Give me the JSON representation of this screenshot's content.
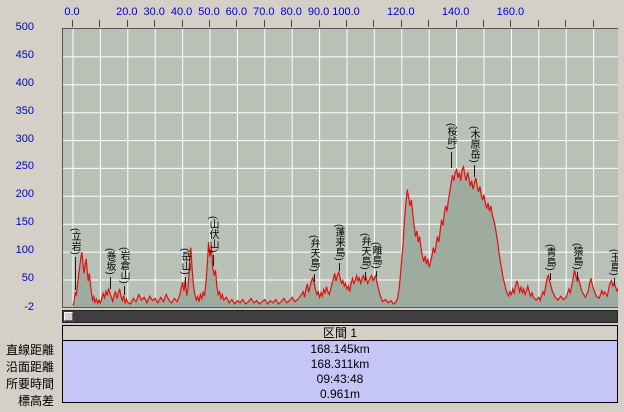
{
  "colors": {
    "window_bg": "#d4d0c8",
    "plot_bg": "#b9c1b6",
    "fill": "#9dac9e",
    "line": "#e01010",
    "grid": "#ffffff",
    "axis_text": "#0000c8",
    "scrollbar_bg": "#3f3f3f",
    "thumb_bg": "#d4d0c8",
    "panel_bg": "#c6c6f6",
    "header_bg": "#d4d0c8"
  },
  "x_axis": {
    "labels": [
      {
        "km": 0,
        "text": "0.0"
      },
      {
        "km": 20,
        "text": "20.0"
      },
      {
        "km": 30,
        "text": "30.0"
      },
      {
        "km": 40,
        "text": "40.0"
      },
      {
        "km": 50,
        "text": "50.0"
      },
      {
        "km": 60,
        "text": "60.0"
      },
      {
        "km": 70,
        "text": "70.0"
      },
      {
        "km": 80,
        "text": "80.0"
      },
      {
        "km": 90,
        "text": "90.0"
      },
      {
        "km": 100,
        "text": "100.0"
      },
      {
        "km": 120,
        "text": "120.0"
      },
      {
        "km": 140,
        "text": "140.0"
      },
      {
        "km": 160,
        "text": "160.0"
      }
    ],
    "tick_step_km": 10
  },
  "y_axis": {
    "labels": [
      {
        "v": 500,
        "text": "500"
      },
      {
        "v": 450,
        "text": "450"
      },
      {
        "v": 400,
        "text": "400"
      },
      {
        "v": 350,
        "text": "350"
      },
      {
        "v": 300,
        "text": "300"
      },
      {
        "v": 250,
        "text": "250"
      },
      {
        "v": 200,
        "text": "200"
      },
      {
        "v": 150,
        "text": "150"
      },
      {
        "v": 100,
        "text": "100"
      },
      {
        "v": 50,
        "text": "50"
      },
      {
        "v": -2,
        "text": "-2"
      }
    ]
  },
  "chart_data": {
    "type": "area",
    "title": "",
    "x_unit": "km",
    "y_unit": "m",
    "x_range": [
      0,
      199.3
    ],
    "y_range": [
      -2,
      500
    ],
    "grid": true,
    "profile": [
      [
        0,
        4
      ],
      [
        0.4,
        12
      ],
      [
        0.8,
        28
      ],
      [
        1.2,
        22
      ],
      [
        1.6,
        40
      ],
      [
        2,
        58
      ],
      [
        2.4,
        72
      ],
      [
        2.8,
        88
      ],
      [
        3.2,
        100
      ],
      [
        3.6,
        82
      ],
      [
        4,
        62
      ],
      [
        4.4,
        76
      ],
      [
        4.8,
        88
      ],
      [
        5.2,
        66
      ],
      [
        5.6,
        48
      ],
      [
        6,
        62
      ],
      [
        6.4,
        42
      ],
      [
        6.8,
        24
      ],
      [
        7.2,
        14
      ],
      [
        7.6,
        20
      ],
      [
        8,
        10
      ],
      [
        8.5,
        16
      ],
      [
        9,
        8
      ],
      [
        9.5,
        14
      ],
      [
        10,
        9
      ],
      [
        10.5,
        17
      ],
      [
        11,
        26
      ],
      [
        11.5,
        18
      ],
      [
        12,
        30
      ],
      [
        12.5,
        22
      ],
      [
        13,
        34
      ],
      [
        13.5,
        27
      ],
      [
        14,
        18
      ],
      [
        14.5,
        12
      ],
      [
        15,
        22
      ],
      [
        15.5,
        30
      ],
      [
        16,
        17
      ],
      [
        16.5,
        25
      ],
      [
        17,
        34
      ],
      [
        17.5,
        20
      ],
      [
        18,
        13
      ],
      [
        18.5,
        22
      ],
      [
        19,
        9
      ],
      [
        19.5,
        16
      ],
      [
        20,
        10
      ],
      [
        21,
        7
      ],
      [
        22,
        17
      ],
      [
        23,
        11
      ],
      [
        24,
        24
      ],
      [
        25,
        14
      ],
      [
        26,
        19
      ],
      [
        27,
        9
      ],
      [
        28,
        21
      ],
      [
        29,
        13
      ],
      [
        30,
        17
      ],
      [
        31,
        9
      ],
      [
        32,
        19
      ],
      [
        33,
        11
      ],
      [
        34,
        24
      ],
      [
        35,
        14
      ],
      [
        36,
        9
      ],
      [
        37,
        17
      ],
      [
        38,
        11
      ],
      [
        39,
        24
      ],
      [
        39.5,
        36
      ],
      [
        40,
        46
      ],
      [
        40.5,
        30
      ],
      [
        41,
        50
      ],
      [
        41.5,
        22
      ],
      [
        42,
        36
      ],
      [
        42.5,
        78
      ],
      [
        43,
        108
      ],
      [
        43.5,
        68
      ],
      [
        44,
        38
      ],
      [
        44.5,
        24
      ],
      [
        45,
        14
      ],
      [
        45.5,
        20
      ],
      [
        46,
        11
      ],
      [
        46.5,
        24
      ],
      [
        47,
        17
      ],
      [
        47.5,
        29
      ],
      [
        48,
        21
      ],
      [
        48.5,
        44
      ],
      [
        49,
        78
      ],
      [
        49.5,
        118
      ],
      [
        50,
        92
      ],
      [
        50.5,
        112
      ],
      [
        51,
        72
      ],
      [
        51.5,
        58
      ],
      [
        52,
        68
      ],
      [
        52.5,
        38
      ],
      [
        53,
        24
      ],
      [
        53.5,
        29
      ],
      [
        54,
        17
      ],
      [
        54.5,
        24
      ],
      [
        55,
        14
      ],
      [
        56,
        19
      ],
      [
        57,
        9
      ],
      [
        58,
        15
      ],
      [
        59,
        7
      ],
      [
        60,
        13
      ],
      [
        61,
        9
      ],
      [
        62,
        15
      ],
      [
        63,
        7
      ],
      [
        64,
        11
      ],
      [
        65,
        17
      ],
      [
        66,
        9
      ],
      [
        67,
        13
      ],
      [
        68,
        7
      ],
      [
        69,
        11
      ],
      [
        70,
        15
      ],
      [
        71,
        7
      ],
      [
        72,
        13
      ],
      [
        73,
        9
      ],
      [
        74,
        15
      ],
      [
        75,
        7
      ],
      [
        76,
        11
      ],
      [
        77,
        17
      ],
      [
        78,
        9
      ],
      [
        79,
        13
      ],
      [
        80,
        19
      ],
      [
        81,
        11
      ],
      [
        82,
        15
      ],
      [
        83,
        21
      ],
      [
        84,
        29
      ],
      [
        84.5,
        19
      ],
      [
        85,
        33
      ],
      [
        85.5,
        43
      ],
      [
        86,
        28
      ],
      [
        86.5,
        38
      ],
      [
        87,
        48
      ],
      [
        87.5,
        54
      ],
      [
        88,
        44
      ],
      [
        88.5,
        33
      ],
      [
        89,
        24
      ],
      [
        89.5,
        29
      ],
      [
        90,
        19
      ],
      [
        90.5,
        27
      ],
      [
        91,
        21
      ],
      [
        91.5,
        33
      ],
      [
        92,
        27
      ],
      [
        92.5,
        38
      ],
      [
        93,
        29
      ],
      [
        93.5,
        24
      ],
      [
        94,
        33
      ],
      [
        94.5,
        43
      ],
      [
        95,
        52
      ],
      [
        95.5,
        62
      ],
      [
        96,
        48
      ],
      [
        96.5,
        58
      ],
      [
        97,
        64
      ],
      [
        97.5,
        53
      ],
      [
        98,
        44
      ],
      [
        98.5,
        49
      ],
      [
        99,
        39
      ],
      [
        99.5,
        44
      ],
      [
        100,
        34
      ],
      [
        100.5,
        39
      ],
      [
        101,
        29
      ],
      [
        101.5,
        44
      ],
      [
        102,
        53
      ],
      [
        102.5,
        44
      ],
      [
        103,
        49
      ],
      [
        103.5,
        58
      ],
      [
        104,
        49
      ],
      [
        104.5,
        54
      ],
      [
        105,
        44
      ],
      [
        105.5,
        53
      ],
      [
        106,
        58
      ],
      [
        106.5,
        49
      ],
      [
        107,
        54
      ],
      [
        107.5,
        44
      ],
      [
        108,
        49
      ],
      [
        108.5,
        54
      ],
      [
        109,
        58
      ],
      [
        109.5,
        49
      ],
      [
        110,
        54
      ],
      [
        110.5,
        58
      ],
      [
        111,
        44
      ],
      [
        111.5,
        34
      ],
      [
        112,
        24
      ],
      [
        112.5,
        17
      ],
      [
        113,
        11
      ],
      [
        114,
        15
      ],
      [
        115,
        9
      ],
      [
        116,
        13
      ],
      [
        117,
        7
      ],
      [
        118,
        11
      ],
      [
        118.5,
        19
      ],
      [
        119,
        34
      ],
      [
        119.5,
        58
      ],
      [
        120,
        88
      ],
      [
        120.5,
        118
      ],
      [
        121,
        158
      ],
      [
        121.5,
        188
      ],
      [
        122,
        212
      ],
      [
        122.5,
        198
      ],
      [
        123,
        183
      ],
      [
        123.5,
        193
      ],
      [
        124,
        168
      ],
      [
        124.5,
        148
      ],
      [
        125,
        128
      ],
      [
        125.5,
        138
      ],
      [
        126,
        118
      ],
      [
        126.5,
        128
      ],
      [
        127,
        108
      ],
      [
        127.5,
        93
      ],
      [
        128,
        83
      ],
      [
        128.5,
        93
      ],
      [
        129,
        78
      ],
      [
        129.5,
        88
      ],
      [
        130,
        73
      ],
      [
        130.5,
        83
      ],
      [
        131,
        93
      ],
      [
        131.5,
        108
      ],
      [
        132,
        98
      ],
      [
        132.5,
        113
      ],
      [
        133,
        128
      ],
      [
        133.5,
        118
      ],
      [
        134,
        138
      ],
      [
        134.5,
        158
      ],
      [
        135,
        148
      ],
      [
        135.5,
        168
      ],
      [
        136,
        183
      ],
      [
        136.5,
        173
      ],
      [
        137,
        193
      ],
      [
        137.5,
        208
      ],
      [
        138,
        223
      ],
      [
        138.5,
        238
      ],
      [
        139,
        228
      ],
      [
        139.5,
        243
      ],
      [
        140,
        248
      ],
      [
        140.5,
        233
      ],
      [
        141,
        243
      ],
      [
        141.5,
        228
      ],
      [
        142,
        248
      ],
      [
        142.5,
        253
      ],
      [
        143,
        238
      ],
      [
        143.5,
        228
      ],
      [
        144,
        243
      ],
      [
        144.5,
        233
      ],
      [
        145,
        218
      ],
      [
        145.5,
        228
      ],
      [
        146,
        213
      ],
      [
        146.5,
        223
      ],
      [
        147,
        233
      ],
      [
        147.5,
        218
      ],
      [
        148,
        208
      ],
      [
        148.5,
        218
      ],
      [
        149,
        203
      ],
      [
        149.5,
        193
      ],
      [
        150,
        203
      ],
      [
        150.5,
        188
      ],
      [
        151,
        178
      ],
      [
        151.5,
        188
      ],
      [
        152,
        173
      ],
      [
        152.5,
        183
      ],
      [
        153,
        168
      ],
      [
        153.5,
        158
      ],
      [
        154,
        148
      ],
      [
        154.5,
        133
      ],
      [
        155,
        118
      ],
      [
        155.5,
        98
      ],
      [
        156,
        83
      ],
      [
        156.5,
        68
      ],
      [
        157,
        53
      ],
      [
        157.5,
        43
      ],
      [
        158,
        33
      ],
      [
        158.5,
        26
      ],
      [
        159,
        21
      ],
      [
        159.5,
        29
      ],
      [
        160,
        24
      ],
      [
        160.5,
        34
      ],
      [
        161,
        27
      ],
      [
        161.5,
        39
      ],
      [
        162,
        49
      ],
      [
        162.5,
        39
      ],
      [
        163,
        29
      ],
      [
        163.5,
        37
      ],
      [
        164,
        27
      ],
      [
        164.5,
        34
      ],
      [
        165,
        24
      ],
      [
        165.5,
        31
      ],
      [
        166,
        39
      ],
      [
        166.5,
        29
      ],
      [
        167,
        21
      ],
      [
        167.5,
        27
      ],
      [
        168,
        19
      ],
      [
        169,
        14
      ],
      [
        170,
        19
      ],
      [
        170.5,
        13
      ],
      [
        171,
        21
      ],
      [
        171.5,
        29
      ],
      [
        172,
        24
      ],
      [
        172.5,
        39
      ],
      [
        173,
        53
      ],
      [
        173.5,
        58
      ],
      [
        174,
        48
      ],
      [
        174.5,
        38
      ],
      [
        175,
        29
      ],
      [
        175.5,
        24
      ],
      [
        176,
        19
      ],
      [
        177,
        14
      ],
      [
        178,
        21
      ],
      [
        179,
        15
      ],
      [
        180,
        19
      ],
      [
        180.5,
        27
      ],
      [
        181,
        34
      ],
      [
        181.5,
        27
      ],
      [
        182,
        39
      ],
      [
        182.5,
        53
      ],
      [
        183,
        68
      ],
      [
        183.5,
        58
      ],
      [
        184,
        48
      ],
      [
        184.5,
        53
      ],
      [
        185,
        43
      ],
      [
        185.5,
        33
      ],
      [
        186,
        27
      ],
      [
        187,
        19
      ],
      [
        188,
        29
      ],
      [
        188.5,
        43
      ],
      [
        189,
        53
      ],
      [
        189.5,
        43
      ],
      [
        190,
        34
      ],
      [
        190.5,
        27
      ],
      [
        191,
        21
      ],
      [
        192,
        17
      ],
      [
        192.5,
        24
      ],
      [
        193,
        31
      ],
      [
        193.5,
        24
      ],
      [
        194,
        29
      ],
      [
        195,
        21
      ],
      [
        195.5,
        34
      ],
      [
        196,
        44
      ],
      [
        196.5,
        49
      ],
      [
        197,
        39
      ],
      [
        197.5,
        44
      ],
      [
        198,
        37
      ],
      [
        198.6,
        30
      ],
      [
        199.3,
        40
      ]
    ],
    "annotations": [
      {
        "text": "(立岩)",
        "km": 0.8,
        "label_elev": 92,
        "ground_elev": 32
      },
      {
        "text": "(巻坂)",
        "km": 13.5,
        "label_elev": 56,
        "ground_elev": 34
      },
      {
        "text": "(岩倉山)",
        "km": 18.5,
        "label_elev": 40,
        "ground_elev": 24
      },
      {
        "text": "(岳山)",
        "km": 41,
        "label_elev": 56,
        "ground_elev": 40
      },
      {
        "text": "(山伏山)",
        "km": 51,
        "label_elev": 94,
        "ground_elev": 74
      },
      {
        "text": "(弁天島)",
        "km": 88,
        "label_elev": 60,
        "ground_elev": 46
      },
      {
        "text": "(蓬来島)",
        "km": 97,
        "label_elev": 80,
        "ground_elev": 66
      },
      {
        "text": "(弁天島)",
        "km": 106.5,
        "label_elev": 64,
        "ground_elev": 50
      },
      {
        "text": "(離島)",
        "km": 110.5,
        "label_elev": 66,
        "ground_elev": 56
      },
      {
        "text": "(桜峠)",
        "km": 138,
        "label_elev": 280,
        "ground_elev": 252
      },
      {
        "text": "(木原岳)",
        "km": 146.5,
        "label_elev": 256,
        "ground_elev": 234
      },
      {
        "text": "(青島)",
        "km": 174,
        "label_elev": 62,
        "ground_elev": 50
      },
      {
        "text": "(猿島)",
        "km": 184,
        "label_elev": 64,
        "ground_elev": 52
      },
      {
        "text": "(玉島)",
        "km": 197.5,
        "label_elev": 54,
        "ground_elev": 42
      }
    ]
  },
  "stats": {
    "header": "区間 1",
    "rows": [
      {
        "label": "直線距離",
        "value": "168.145km"
      },
      {
        "label": "沿面距離",
        "value": "168.311km"
      },
      {
        "label": "所要時間",
        "value": "09:43:48"
      },
      {
        "label": "標高差",
        "value": "0.961m"
      }
    ]
  }
}
